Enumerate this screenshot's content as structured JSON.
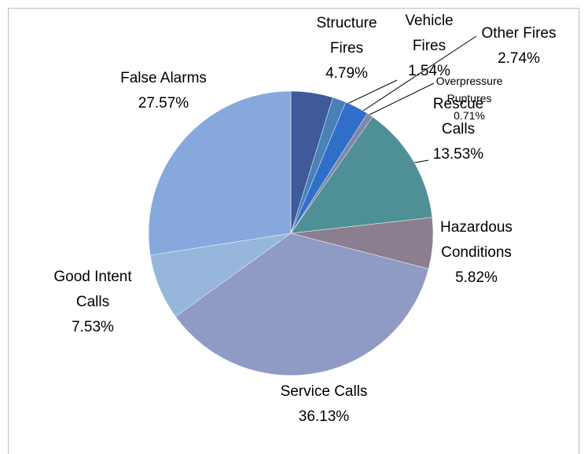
{
  "chart_data": {
    "type": "pie",
    "categories": [
      "Structure Fires",
      "Vehicle Fires",
      "Other Fires",
      "Overpressure Ruptures",
      "Rescue Calls",
      "Hazardous Conditions",
      "Service Calls",
      "Good Intent Calls",
      "False Alarms"
    ],
    "values": [
      4.79,
      1.54,
      2.74,
      0.71,
      13.53,
      5.82,
      36.13,
      7.53,
      27.57
    ],
    "value_labels": [
      "4.79%",
      "1.54%",
      "2.74%",
      "0.71%",
      "13.53%",
      "5.82%",
      "36.13%",
      "7.53%",
      "27.57%"
    ],
    "colors": [
      "#3f5a9a",
      "#4a80b8",
      "#2f6fc9",
      "#7f88a8",
      "#4e9096",
      "#8b7f8f",
      "#8f9bc4",
      "#96b6dc",
      "#87a8dd"
    ]
  }
}
